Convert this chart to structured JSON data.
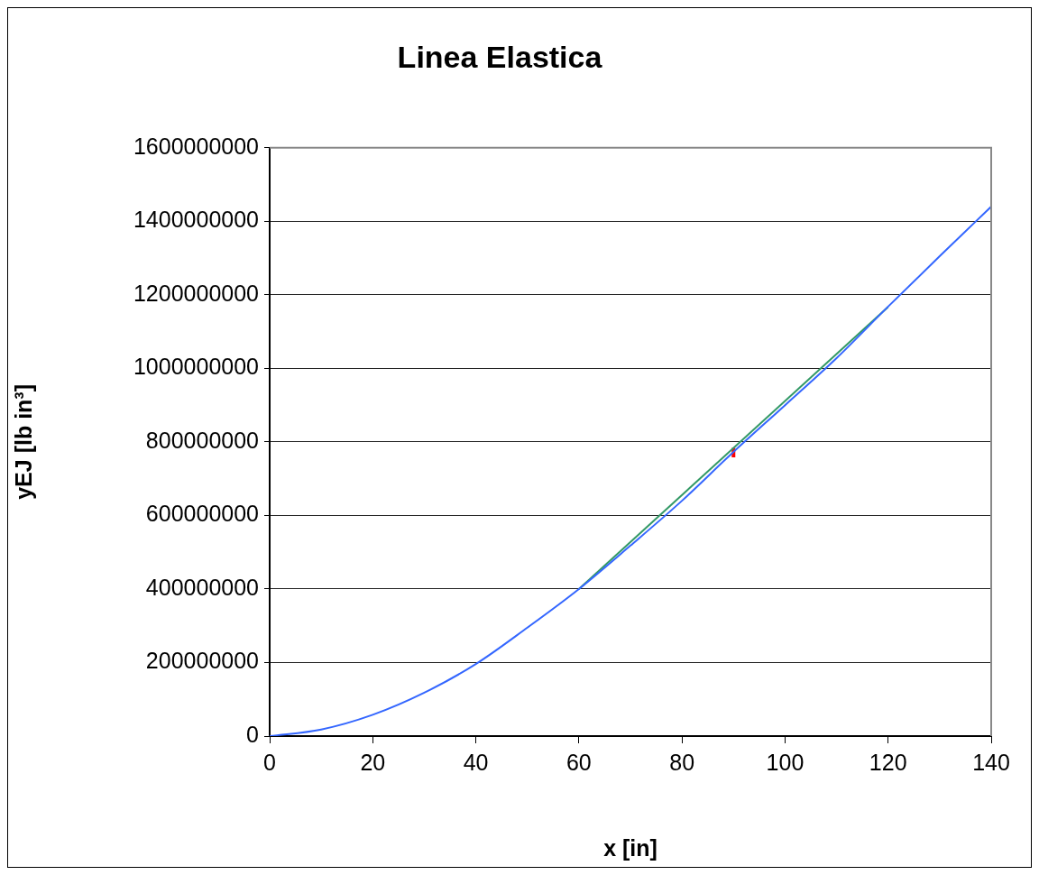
{
  "chart_data": {
    "type": "line",
    "title": "Linea Elastica",
    "xlabel": "x [in]",
    "ylabel": "yEJ [lb in³]",
    "xlim": [
      0,
      140
    ],
    "xticks": [
      0,
      20,
      40,
      60,
      80,
      100,
      120,
      140
    ],
    "ylim": [
      0,
      1600000000
    ],
    "yticks": [
      0,
      200000000,
      400000000,
      600000000,
      800000000,
      1000000000,
      1200000000,
      1400000000,
      1600000000
    ],
    "grid": "y",
    "legend": false,
    "marker": "none",
    "line_style": "solid",
    "series": [
      {
        "color": "#3366ff",
        "x": [
          0,
          10,
          20,
          30,
          40,
          50,
          60,
          70,
          80,
          90,
          100,
          110,
          120,
          130,
          140
        ],
        "values": [
          0,
          18000000,
          58000000,
          118000000,
          196000000,
          295000000,
          400000000,
          518000000,
          640000000,
          773000000,
          900000000,
          1028000000,
          1168000000,
          1305000000,
          1440000000
        ]
      },
      {
        "color": "#339966",
        "x": [
          60,
          120
        ],
        "values": [
          400000000,
          1167000000
        ]
      },
      {
        "color": "#ff0000",
        "x": [
          90,
          90
        ],
        "values": [
          758000000,
          784000000
        ]
      }
    ]
  }
}
